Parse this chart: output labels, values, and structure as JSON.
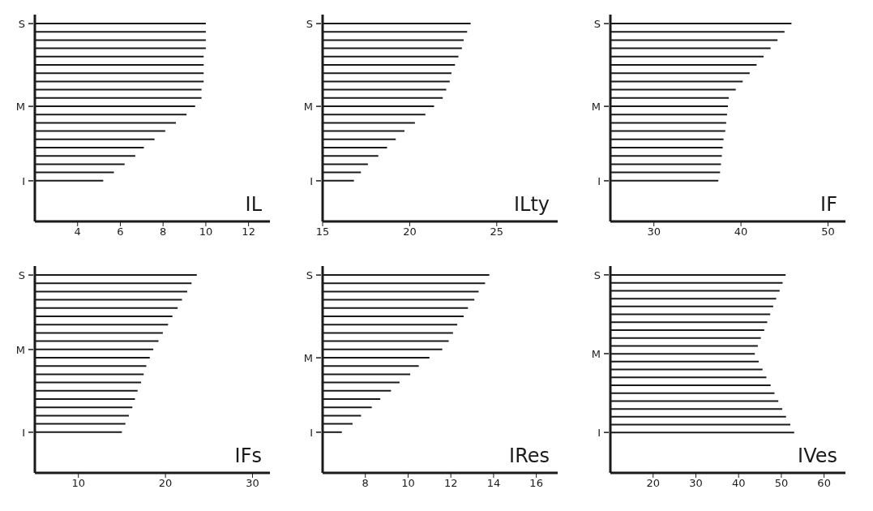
{
  "chart_data": [
    {
      "type": "bar",
      "orientation": "horizontal",
      "title": "IL",
      "color": "#1a1a1a",
      "categories": [
        "S",
        null,
        null,
        null,
        null,
        null,
        null,
        null,
        null,
        null,
        "M",
        null,
        null,
        null,
        null,
        null,
        null,
        null,
        null,
        "I"
      ],
      "values": [
        10,
        10,
        10,
        10,
        9.9,
        9.9,
        9.9,
        9.9,
        9.8,
        9.8,
        9.5,
        9.1,
        8.6,
        8.1,
        7.6,
        7.1,
        6.7,
        6.2,
        5.7,
        5.2
      ],
      "xlim": [
        2,
        13
      ],
      "xticks": [
        4,
        6,
        8,
        10,
        12
      ]
    },
    {
      "type": "bar",
      "orientation": "horizontal",
      "title": "ILty",
      "color": "#1a1a1a",
      "categories": [
        "S",
        null,
        null,
        null,
        null,
        null,
        null,
        null,
        null,
        null,
        "M",
        null,
        null,
        null,
        null,
        null,
        null,
        null,
        null,
        "I"
      ],
      "values": [
        23.5,
        23.3,
        23.1,
        23.0,
        22.8,
        22.6,
        22.4,
        22.3,
        22.1,
        21.9,
        21.4,
        20.9,
        20.3,
        19.7,
        19.2,
        18.7,
        18.2,
        17.6,
        17.2,
        16.8
      ],
      "xlim": [
        15,
        28.5
      ],
      "xticks": [
        15,
        20,
        25
      ]
    },
    {
      "type": "bar",
      "orientation": "horizontal",
      "title": "IF",
      "color": "#1a1a1a",
      "categories": [
        "S",
        null,
        null,
        null,
        null,
        null,
        null,
        null,
        null,
        null,
        "M",
        null,
        null,
        null,
        null,
        null,
        null,
        null,
        null,
        "I"
      ],
      "values": [
        45.8,
        45.0,
        44.2,
        43.4,
        42.6,
        41.8,
        41.0,
        40.2,
        39.4,
        38.6,
        38.5,
        38.4,
        38.3,
        38.2,
        38.0,
        37.9,
        37.8,
        37.7,
        37.6,
        37.4
      ],
      "xlim": [
        25,
        52
      ],
      "xticks": [
        30,
        40,
        50
      ]
    },
    {
      "type": "bar",
      "orientation": "horizontal",
      "title": "IFs",
      "color": "#1a1a1a",
      "categories": [
        "S",
        null,
        null,
        null,
        null,
        null,
        null,
        null,
        null,
        "M",
        null,
        null,
        null,
        null,
        null,
        null,
        null,
        null,
        null,
        "I"
      ],
      "values": [
        23.6,
        23.0,
        22.5,
        21.9,
        21.4,
        20.8,
        20.3,
        19.7,
        19.2,
        18.6,
        18.2,
        17.8,
        17.5,
        17.2,
        16.8,
        16.5,
        16.2,
        15.8,
        15.4,
        15.0
      ],
      "xlim": [
        5,
        32
      ],
      "xticks": [
        10,
        20,
        30
      ]
    },
    {
      "type": "bar",
      "orientation": "horizontal",
      "title": "IRes",
      "color": "#1a1a1a",
      "categories": [
        "S",
        null,
        null,
        null,
        null,
        null,
        null,
        null,
        null,
        null,
        "M",
        null,
        null,
        null,
        null,
        null,
        null,
        null,
        null,
        "I"
      ],
      "values": [
        13.8,
        13.6,
        13.3,
        13.1,
        12.8,
        12.6,
        12.3,
        12.1,
        11.9,
        11.6,
        11.0,
        10.5,
        10.1,
        9.6,
        9.2,
        8.7,
        8.3,
        7.8,
        7.4,
        6.9
      ],
      "xlim": [
        6,
        17
      ],
      "xticks": [
        8,
        10,
        12,
        14,
        16
      ]
    },
    {
      "type": "bar",
      "orientation": "horizontal",
      "title": "IVes",
      "color": "#1a1a1a",
      "categories": [
        "S",
        null,
        null,
        null,
        null,
        null,
        null,
        null,
        null,
        null,
        "M",
        null,
        null,
        null,
        null,
        null,
        null,
        null,
        null,
        null,
        "I"
      ],
      "values": [
        51.0,
        50.3,
        49.6,
        48.8,
        48.1,
        47.4,
        46.7,
        46.0,
        45.2,
        44.5,
        43.8,
        44.7,
        45.6,
        46.5,
        47.5,
        48.4,
        49.3,
        50.2,
        51.1,
        52.1,
        53.0
      ],
      "xlim": [
        10,
        65
      ],
      "xticks": [
        20,
        30,
        40,
        50,
        60
      ]
    }
  ]
}
